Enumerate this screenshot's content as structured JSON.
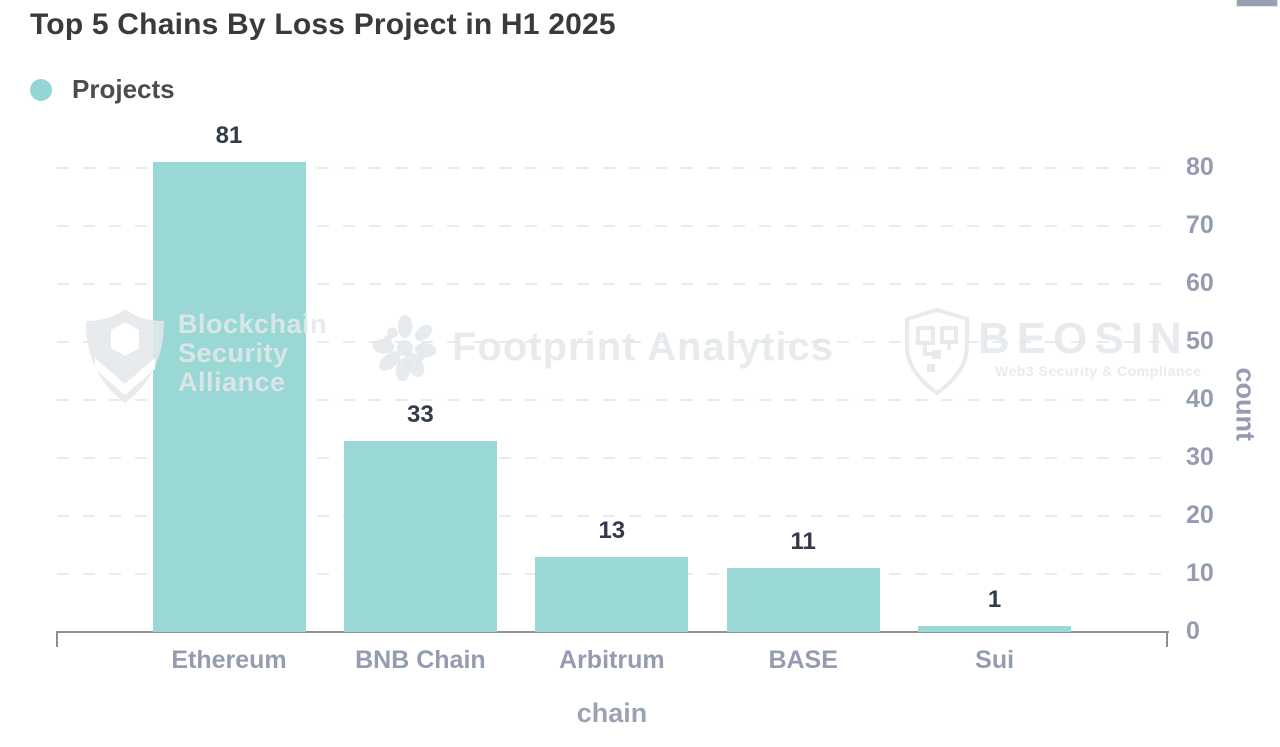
{
  "page": {
    "title": "Top 5 Chains By Loss Project in H1 2025"
  },
  "legend": {
    "label": "Projects",
    "color": "#93d6d3"
  },
  "chart_data": {
    "type": "bar",
    "title": "Top 5 Chains By Loss Project in H1 2025",
    "categories": [
      "Ethereum",
      "BNB Chain",
      "Arbitrum",
      "BASE",
      "Sui"
    ],
    "series": [
      {
        "name": "Projects",
        "values": [
          81,
          33,
          13,
          11,
          1
        ]
      }
    ],
    "value_labels": [
      "81",
      "33",
      "13",
      "11",
      "1"
    ],
    "xlabel": "chain",
    "ylabel": "count",
    "ylim": [
      0,
      80
    ],
    "yticks": [
      0,
      10,
      20,
      30,
      40,
      50,
      60,
      70,
      80
    ],
    "grid": "horizontal-dashed",
    "legend_position": "top-left",
    "bar_color": "#9ad8d6",
    "tick_label_color": "#949cb1",
    "value_label_color": "#333a49"
  },
  "watermarks": {
    "bsa": {
      "icon": "shield-hexagon",
      "line1": "Blockchain",
      "line2": "Security",
      "line3": "Alliance"
    },
    "footprint": {
      "icon": "starburst",
      "text": "Footprint Analytics"
    },
    "beosin": {
      "icon": "shield-circuit",
      "text": "BEOSIN",
      "subtext": "Web3 Security & Compliance"
    }
  }
}
